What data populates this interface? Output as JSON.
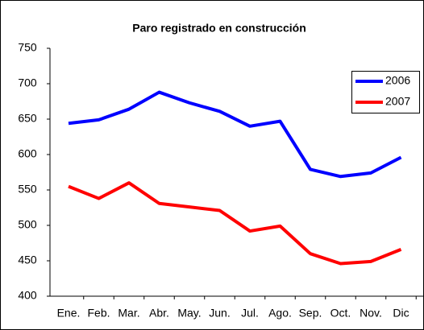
{
  "chart_data": {
    "type": "line",
    "title": "Paro registrado en construcción",
    "categories": [
      "Ene.",
      "Feb.",
      "Mar.",
      "Abr.",
      "May.",
      "Jun.",
      "Jul.",
      "Ago.",
      "Sep.",
      "Oct.",
      "Nov.",
      "Dic"
    ],
    "series": [
      {
        "name": "2006",
        "color": "#0000ff",
        "values": [
          644,
          649,
          664,
          688,
          673,
          661,
          640,
          647,
          579,
          569,
          574,
          596
        ]
      },
      {
        "name": "2007",
        "color": "#ff0000",
        "values": [
          555,
          538,
          560,
          531,
          526,
          521,
          492,
          499,
          460,
          446,
          449,
          466
        ]
      }
    ],
    "ylim": [
      400,
      750
    ],
    "yticks": [
      400,
      450,
      500,
      550,
      600,
      650,
      700,
      750
    ],
    "legend": "right"
  }
}
